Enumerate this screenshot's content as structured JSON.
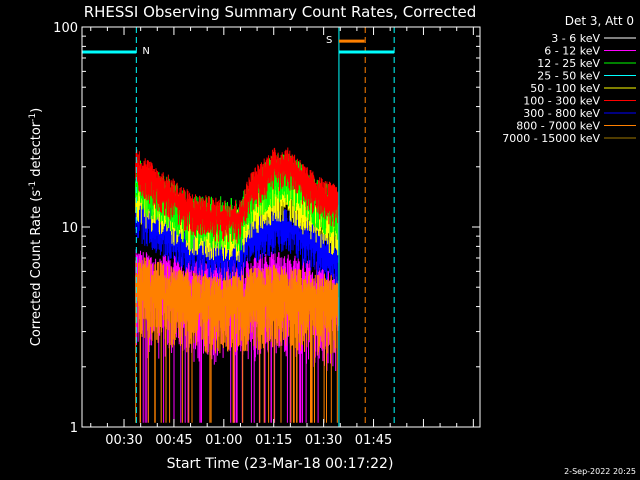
{
  "chart_data": {
    "type": "line",
    "title": "RHESSI Observing Summary Count Rates, Corrected",
    "xlabel": "Start Time (23-Mar-18 00:17:22)",
    "ylabel": "Corrected Count Rate (s⁻¹ detector⁻¹)",
    "ylabel_main": "Corrected Count Rate (s",
    "ylabel_sup1": "-1",
    "ylabel_mid": " detector",
    "ylabel_sup2": "-1",
    "ylabel_end": ")",
    "yscale": "log",
    "ylim": [
      1,
      100
    ],
    "xlim_minutes_of_day": [
      17.37,
      137.0
    ],
    "x_ticks": [
      {
        "m": 30,
        "label": "00:30"
      },
      {
        "m": 45,
        "label": "00:45"
      },
      {
        "m": 60,
        "label": "01:00"
      },
      {
        "m": 75,
        "label": "01:15"
      },
      {
        "m": 90,
        "label": "01:30"
      },
      {
        "m": 105,
        "label": "01:45"
      }
    ],
    "y_ticks": [
      {
        "v": 1,
        "label": "1"
      },
      {
        "v": 10,
        "label": "10"
      },
      {
        "v": 100,
        "label": "100"
      }
    ],
    "legend_header": "Det 3, Att 0",
    "legend_placement": "right",
    "series": [
      {
        "name": "3 - 6 keV",
        "color": "#ffffff"
      },
      {
        "name": "6 - 12 keV",
        "color": "#ff00ff"
      },
      {
        "name": "12 - 25 keV",
        "color": "#00ff00"
      },
      {
        "name": "25 - 50 keV",
        "color": "#00ffff"
      },
      {
        "name": "50 - 100 keV",
        "color": "#ffff00"
      },
      {
        "name": "100 - 300 keV",
        "color": "#ff0000"
      },
      {
        "name": "300 - 800 keV",
        "color": "#0000ff"
      },
      {
        "name": "800 - 7000 keV",
        "color": "#ff8000"
      },
      {
        "name": "7000 - 15000 keV",
        "color": "#a07800"
      }
    ],
    "data_start_minute": 33.5,
    "data_end_minute": 94.3,
    "band_profiles": [
      {
        "series": "12 - 25 keV",
        "points": [
          [
            33.5,
            17
          ],
          [
            40,
            15
          ],
          [
            50,
            11
          ],
          [
            60,
            11
          ],
          [
            65,
            10.5
          ],
          [
            68,
            14
          ],
          [
            75,
            18
          ],
          [
            80,
            18
          ],
          [
            85,
            15
          ],
          [
            90,
            13
          ],
          [
            94,
            12
          ]
        ]
      },
      {
        "series": "100 - 300 keV",
        "points": [
          [
            33.5,
            20
          ],
          [
            40,
            16
          ],
          [
            50,
            12
          ],
          [
            60,
            11
          ],
          [
            65,
            11
          ],
          [
            68,
            15
          ],
          [
            75,
            20
          ],
          [
            80,
            20
          ],
          [
            85,
            16
          ],
          [
            90,
            14
          ],
          [
            94,
            13
          ]
        ]
      },
      {
        "series": "50 - 100 keV",
        "points": [
          [
            33.5,
            15
          ],
          [
            40,
            13
          ],
          [
            50,
            10
          ],
          [
            60,
            9.5
          ],
          [
            65,
            9.5
          ],
          [
            68,
            12
          ],
          [
            75,
            15
          ],
          [
            80,
            15
          ],
          [
            85,
            12.5
          ],
          [
            90,
            11
          ],
          [
            94,
            10
          ]
        ]
      },
      {
        "series": "300 - 800 keV",
        "points": [
          [
            33.5,
            12
          ],
          [
            40,
            10
          ],
          [
            50,
            8
          ],
          [
            60,
            7.5
          ],
          [
            65,
            7.5
          ],
          [
            68,
            9
          ],
          [
            75,
            10
          ],
          [
            80,
            10
          ],
          [
            85,
            8.5
          ],
          [
            90,
            7.5
          ],
          [
            94,
            7
          ]
        ]
      },
      {
        "series": "6 - 12 keV",
        "points": [
          [
            33.5,
            5
          ],
          [
            50,
            4.5
          ],
          [
            65,
            4.5
          ],
          [
            75,
            5
          ],
          [
            85,
            4.5
          ],
          [
            94,
            4
          ]
        ]
      },
      {
        "series": "800 - 7000 keV",
        "points": [
          [
            33.5,
            5
          ],
          [
            50,
            4.2
          ],
          [
            65,
            4.2
          ],
          [
            75,
            4.5
          ],
          [
            85,
            4.2
          ],
          [
            94,
            4
          ]
        ]
      }
    ],
    "attenuator_bars": {
      "night": [
        {
          "x0": 17.37,
          "x1": 33.7,
          "y": 75,
          "label": "N",
          "color": "#00ffff"
        },
        {
          "x0": 94.6,
          "x1": 111.2,
          "y": 75,
          "color": "#00ffff"
        }
      ],
      "saa": [
        {
          "x0": 94.6,
          "x1": 102.3,
          "y": 85,
          "label": "S",
          "color": "#ff8000"
        }
      ]
    },
    "vlines": [
      {
        "m": 33.7,
        "color": "#00ffff",
        "dashed": true
      },
      {
        "m": 94.6,
        "color": "#00ffff",
        "dashed": false
      },
      {
        "m": 102.5,
        "color": "#ff8000",
        "dashed": true
      },
      {
        "m": 111.2,
        "color": "#00ffff",
        "dashed": true
      }
    ]
  },
  "footer": {
    "date_stamp": "2-Sep-2022 20:25"
  }
}
